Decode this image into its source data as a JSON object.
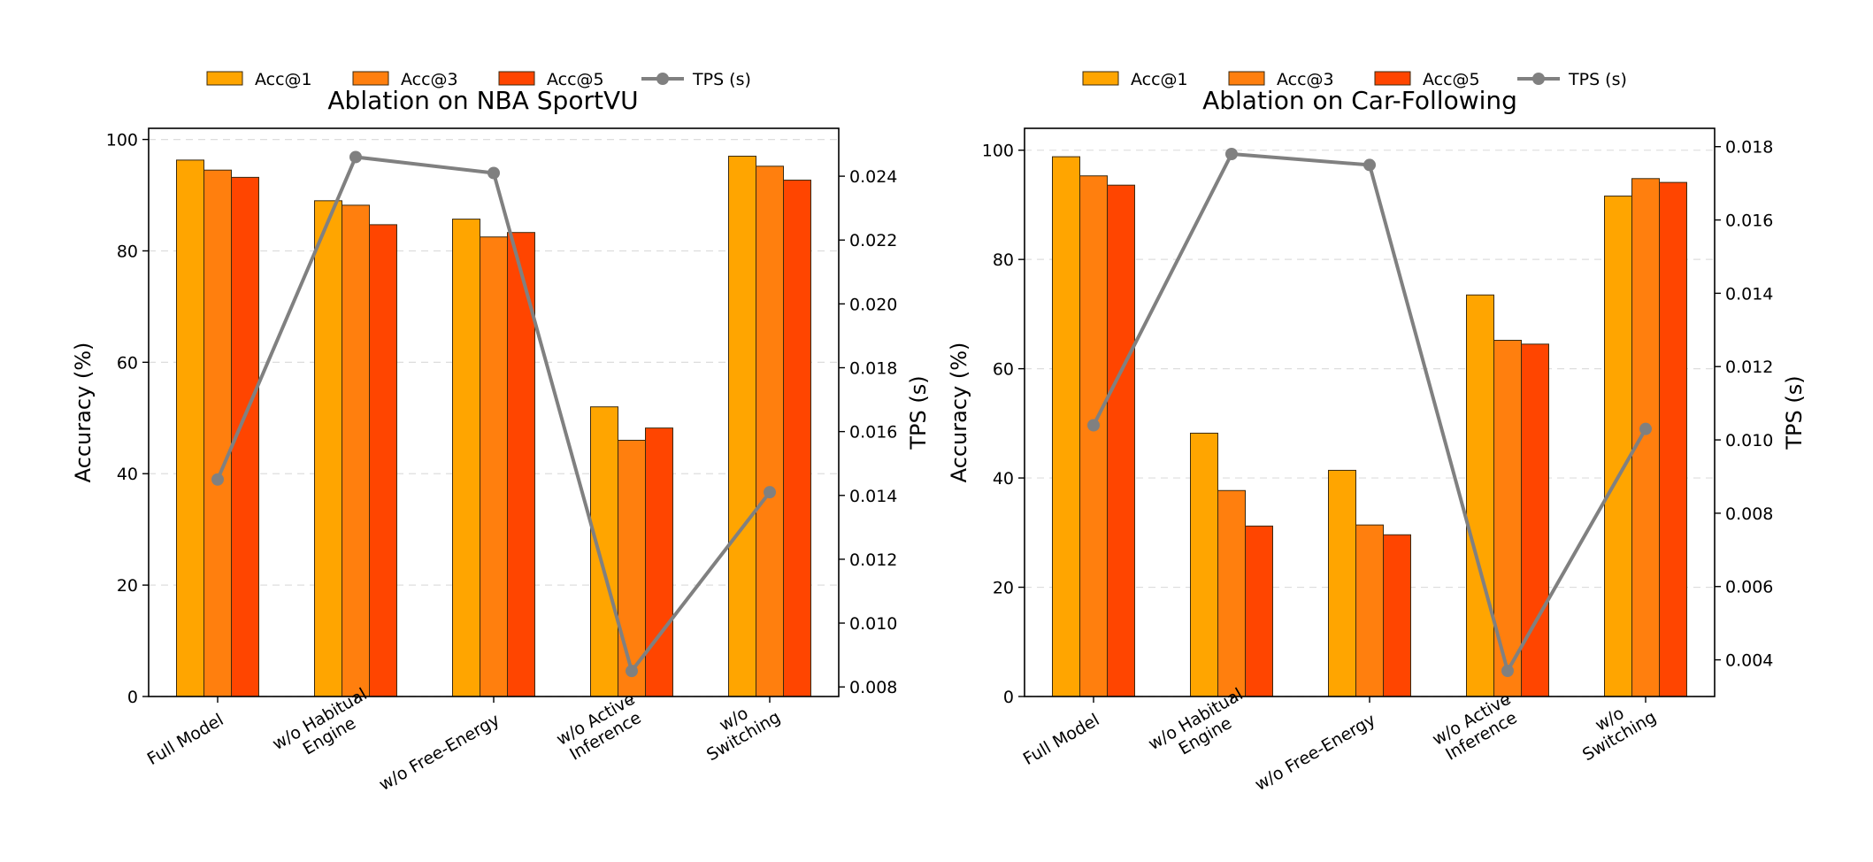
{
  "chart_data": [
    {
      "type": "bar",
      "title": "Ablation on NBA SportVU",
      "ylabel": "Accuracy (%)",
      "y2label": "TPS (s)",
      "categories": [
        "Full Model",
        "w/o Habitual\nEngine",
        "w/o Free-Energy",
        "w/o Active\nInference",
        "w/o\nSwitching"
      ],
      "ylim": [
        0,
        102
      ],
      "yticks": [
        0,
        20,
        40,
        60,
        80,
        100
      ],
      "y2lim": [
        0.0077,
        0.0255
      ],
      "y2ticks": [
        0.008,
        0.01,
        0.012,
        0.014,
        0.016,
        0.018,
        0.02,
        0.022,
        0.024
      ],
      "y2tick_labels": [
        "0.008",
        "0.010",
        "0.012",
        "0.014",
        "0.016",
        "0.018",
        "0.020",
        "0.022",
        "0.024"
      ],
      "grid": true,
      "legend": "top, outside",
      "series": [
        {
          "name": "Acc@1",
          "kind": "bar",
          "color": "#FFA500",
          "values": [
            96.3,
            89.0,
            85.7,
            52.0,
            97.0
          ]
        },
        {
          "name": "Acc@3",
          "kind": "bar",
          "color": "#FF7F0E",
          "values": [
            94.5,
            88.2,
            82.5,
            46.0,
            95.2
          ]
        },
        {
          "name": "Acc@5",
          "kind": "bar",
          "color": "#FF4500",
          "values": [
            93.2,
            84.7,
            83.3,
            48.2,
            92.7
          ]
        },
        {
          "name": "TPS (s)",
          "kind": "line",
          "axis": "right",
          "color": "#808080",
          "values": [
            0.0145,
            0.0246,
            0.0241,
            0.0085,
            0.0141
          ]
        }
      ]
    },
    {
      "type": "bar",
      "title": "Ablation on Car-Following",
      "ylabel": "Accuracy (%)",
      "y2label": "TPS (s)",
      "categories": [
        "Full Model",
        "w/o Habitual\nEngine",
        "w/o Free-Energy",
        "w/o Active\nInference",
        "w/o\nSwitching"
      ],
      "ylim": [
        0,
        104
      ],
      "yticks": [
        0,
        20,
        40,
        60,
        80,
        100
      ],
      "y2lim": [
        0.003,
        0.0185
      ],
      "y2ticks": [
        0.004,
        0.006,
        0.008,
        0.01,
        0.012,
        0.014,
        0.016,
        0.018
      ],
      "y2tick_labels": [
        "0.004",
        "0.006",
        "0.008",
        "0.010",
        "0.012",
        "0.014",
        "0.016",
        "0.018"
      ],
      "grid": true,
      "legend": "top, outside",
      "series": [
        {
          "name": "Acc@1",
          "kind": "bar",
          "color": "#FFA500",
          "values": [
            98.8,
            48.2,
            41.4,
            73.5,
            91.6
          ]
        },
        {
          "name": "Acc@3",
          "kind": "bar",
          "color": "#FF7F0E",
          "values": [
            95.3,
            37.7,
            31.4,
            65.2,
            94.8
          ]
        },
        {
          "name": "Acc@5",
          "kind": "bar",
          "color": "#FF4500",
          "values": [
            93.6,
            31.2,
            29.6,
            64.5,
            94.1
          ]
        },
        {
          "name": "TPS (s)",
          "kind": "line",
          "axis": "right",
          "color": "#808080",
          "values": [
            0.0104,
            0.0178,
            0.0175,
            0.0037,
            0.0103
          ]
        }
      ]
    }
  ]
}
